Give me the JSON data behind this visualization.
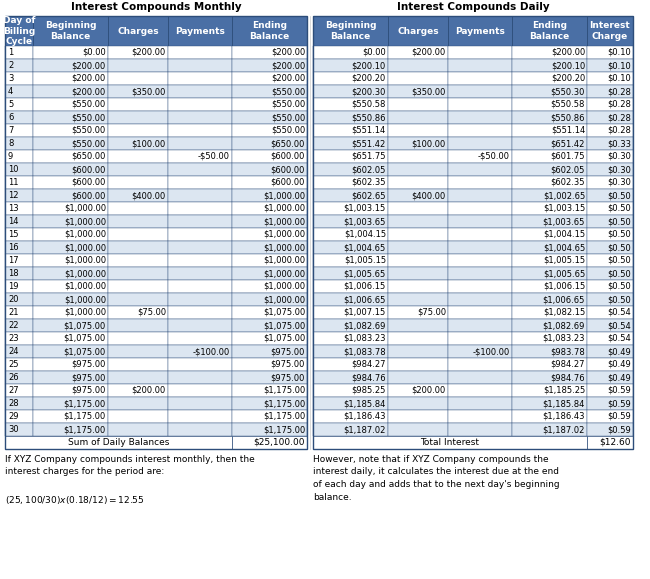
{
  "title_left": "Interest Compounds Monthly",
  "title_right": "Interest Compounds Daily",
  "headers_left": [
    "Day of\nBilling\nCycle",
    "Beginning\nBalance",
    "Charges",
    "Payments",
    "Ending\nBalance"
  ],
  "headers_right": [
    "Beginning\nBalance",
    "Charges",
    "Payments",
    "Ending\nBalance",
    "Interest\nCharge"
  ],
  "rows": [
    [
      1,
      "$0.00",
      "$200.00",
      "",
      "$200.00",
      "$0.00",
      "$200.00",
      "",
      "$200.00",
      "$0.10"
    ],
    [
      2,
      "$200.00",
      "",
      "",
      "$200.00",
      "$200.10",
      "",
      "",
      "$200.10",
      "$0.10"
    ],
    [
      3,
      "$200.00",
      "",
      "",
      "$200.00",
      "$200.20",
      "",
      "",
      "$200.20",
      "$0.10"
    ],
    [
      4,
      "$200.00",
      "$350.00",
      "",
      "$550.00",
      "$200.30",
      "$350.00",
      "",
      "$550.30",
      "$0.28"
    ],
    [
      5,
      "$550.00",
      "",
      "",
      "$550.00",
      "$550.58",
      "",
      "",
      "$550.58",
      "$0.28"
    ],
    [
      6,
      "$550.00",
      "",
      "",
      "$550.00",
      "$550.86",
      "",
      "",
      "$550.86",
      "$0.28"
    ],
    [
      7,
      "$550.00",
      "",
      "",
      "$550.00",
      "$551.14",
      "",
      "",
      "$551.14",
      "$0.28"
    ],
    [
      8,
      "$550.00",
      "$100.00",
      "",
      "$650.00",
      "$551.42",
      "$100.00",
      "",
      "$651.42",
      "$0.33"
    ],
    [
      9,
      "$650.00",
      "",
      "-$50.00",
      "$600.00",
      "$651.75",
      "",
      "-$50.00",
      "$601.75",
      "$0.30"
    ],
    [
      10,
      "$600.00",
      "",
      "",
      "$600.00",
      "$602.05",
      "",
      "",
      "$602.05",
      "$0.30"
    ],
    [
      11,
      "$600.00",
      "",
      "",
      "$600.00",
      "$602.35",
      "",
      "",
      "$602.35",
      "$0.30"
    ],
    [
      12,
      "$600.00",
      "$400.00",
      "",
      "$1,000.00",
      "$602.65",
      "$400.00",
      "",
      "$1,002.65",
      "$0.50"
    ],
    [
      13,
      "$1,000.00",
      "",
      "",
      "$1,000.00",
      "$1,003.15",
      "",
      "",
      "$1,003.15",
      "$0.50"
    ],
    [
      14,
      "$1,000.00",
      "",
      "",
      "$1,000.00",
      "$1,003.65",
      "",
      "",
      "$1,003.65",
      "$0.50"
    ],
    [
      15,
      "$1,000.00",
      "",
      "",
      "$1,000.00",
      "$1,004.15",
      "",
      "",
      "$1,004.15",
      "$0.50"
    ],
    [
      16,
      "$1,000.00",
      "",
      "",
      "$1,000.00",
      "$1,004.65",
      "",
      "",
      "$1,004.65",
      "$0.50"
    ],
    [
      17,
      "$1,000.00",
      "",
      "",
      "$1,000.00",
      "$1,005.15",
      "",
      "",
      "$1,005.15",
      "$0.50"
    ],
    [
      18,
      "$1,000.00",
      "",
      "",
      "$1,000.00",
      "$1,005.65",
      "",
      "",
      "$1,005.65",
      "$0.50"
    ],
    [
      19,
      "$1,000.00",
      "",
      "",
      "$1,000.00",
      "$1,006.15",
      "",
      "",
      "$1,006.15",
      "$0.50"
    ],
    [
      20,
      "$1,000.00",
      "",
      "",
      "$1,000.00",
      "$1,006.65",
      "",
      "",
      "$1,006.65",
      "$0.50"
    ],
    [
      21,
      "$1,000.00",
      "$75.00",
      "",
      "$1,075.00",
      "$1,007.15",
      "$75.00",
      "",
      "$1,082.15",
      "$0.54"
    ],
    [
      22,
      "$1,075.00",
      "",
      "",
      "$1,075.00",
      "$1,082.69",
      "",
      "",
      "$1,082.69",
      "$0.54"
    ],
    [
      23,
      "$1,075.00",
      "",
      "",
      "$1,075.00",
      "$1,083.23",
      "",
      "",
      "$1,083.23",
      "$0.54"
    ],
    [
      24,
      "$1,075.00",
      "",
      "-$100.00",
      "$975.00",
      "$1,083.78",
      "",
      "-$100.00",
      "$983.78",
      "$0.49"
    ],
    [
      25,
      "$975.00",
      "",
      "",
      "$975.00",
      "$984.27",
      "",
      "",
      "$984.27",
      "$0.49"
    ],
    [
      26,
      "$975.00",
      "",
      "",
      "$975.00",
      "$984.76",
      "",
      "",
      "$984.76",
      "$0.49"
    ],
    [
      27,
      "$975.00",
      "$200.00",
      "",
      "$1,175.00",
      "$985.25",
      "$200.00",
      "",
      "$1,185.25",
      "$0.59"
    ],
    [
      28,
      "$1,175.00",
      "",
      "",
      "$1,175.00",
      "$1,185.84",
      "",
      "",
      "$1,185.84",
      "$0.59"
    ],
    [
      29,
      "$1,175.00",
      "",
      "",
      "$1,175.00",
      "$1,186.43",
      "",
      "",
      "$1,186.43",
      "$0.59"
    ],
    [
      30,
      "$1,175.00",
      "",
      "",
      "$1,175.00",
      "$1,187.02",
      "",
      "",
      "$1,187.02",
      "$0.59"
    ]
  ],
  "sum_label_left": "Sum of Daily Balances",
  "sum_value_left": "$25,100.00",
  "sum_label_right": "Total Interest",
  "sum_value_right": "$12.60",
  "footnote_left": "If XYZ Company compounds interest monthly, then the\ninterest charges for the period are:\n\n($25,100/30) x (0.18/12) = $12.55",
  "footnote_right": "However, note that if XYZ Company compounds the\ninterest daily, it calculates the interest due at the end\nof each day and adds that to the next day's beginning\nbalance.",
  "header_bg": "#4a6fa5",
  "header_text": "#ffffff",
  "row_bg_odd": "#ffffff",
  "row_bg_even": "#dce6f1",
  "border_color": "#2d4d7a",
  "text_color": "#000000",
  "sum_bg": "#ffffff"
}
